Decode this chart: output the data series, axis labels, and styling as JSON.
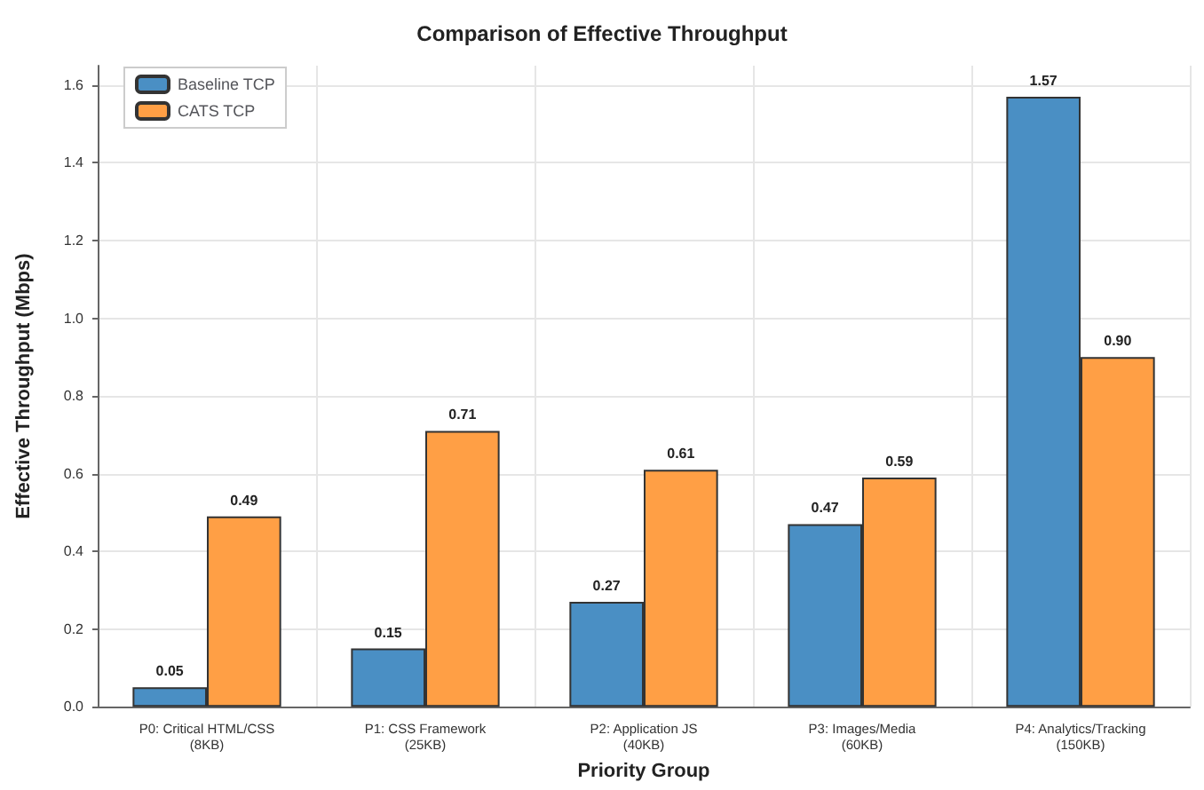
{
  "chart_data": {
    "type": "bar",
    "title": "Comparison of Effective Throughput",
    "xlabel": "Priority Group",
    "ylabel": "Effective Throughput (Mbps)",
    "categories": [
      "P0: Critical HTML/CSS\n(8KB)",
      "P1: CSS Framework\n(25KB)",
      "P2: Application JS\n(40KB)",
      "P3: Images/Media\n(60KB)",
      "P4: Analytics/Tracking\n(150KB)"
    ],
    "series": [
      {
        "name": "Baseline TCP",
        "color": "#4a8fc4",
        "values": [
          0.05,
          0.15,
          0.27,
          0.47,
          1.57
        ],
        "value_labels": [
          "0.05",
          "0.15",
          "0.27",
          "0.47",
          "1.57"
        ]
      },
      {
        "name": "CATS TCP",
        "color": "#ff9f45",
        "values": [
          0.49,
          0.71,
          0.61,
          0.59,
          0.9
        ],
        "value_labels": [
          "0.49",
          "0.71",
          "0.61",
          "0.59",
          "0.90"
        ]
      }
    ],
    "ylim": [
      0,
      1.65
    ],
    "yticks": [
      {
        "value": 0,
        "label": "0.0"
      },
      0.2,
      0.4,
      0.6,
      0.8,
      {
        "value": 1,
        "label": "1.0"
      },
      1.2,
      1.4,
      1.6
    ],
    "grid": true,
    "legend": "top left"
  }
}
